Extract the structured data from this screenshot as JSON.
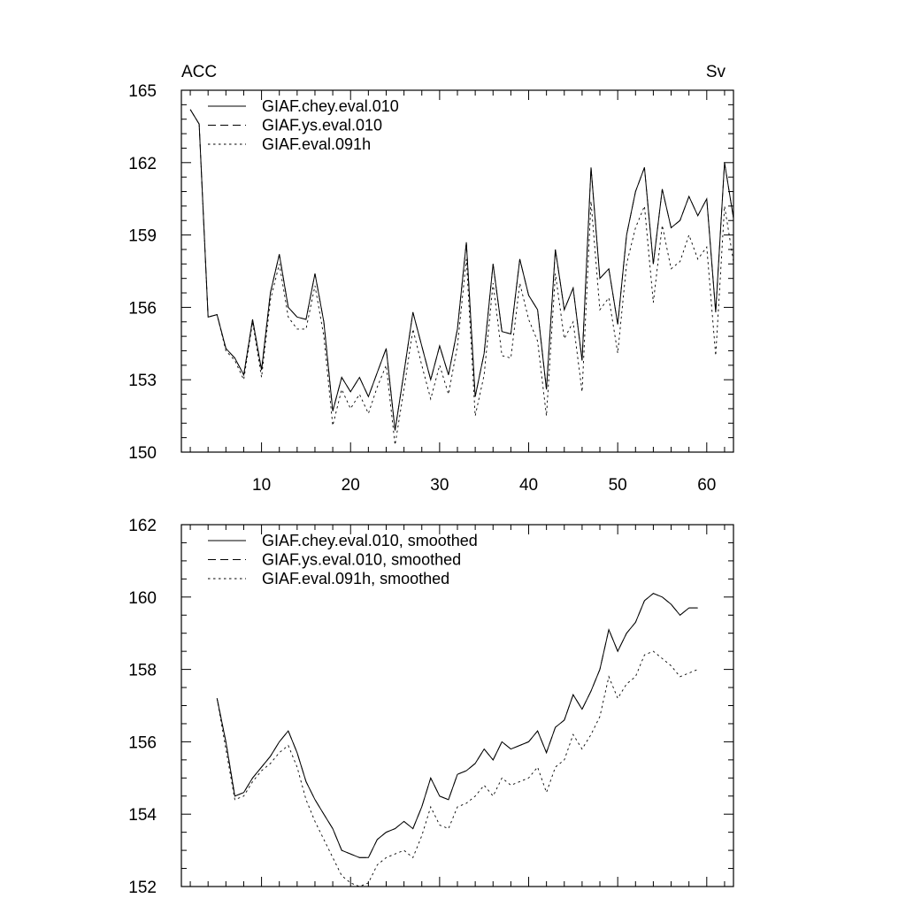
{
  "chart_data": [
    {
      "type": "line",
      "left_label": "ACC",
      "right_label": "Sv",
      "xlim": [
        1,
        63
      ],
      "ylim": [
        150,
        165
      ],
      "xticks": [
        10,
        20,
        30,
        40,
        50,
        60
      ],
      "yticks": [
        150,
        153,
        156,
        159,
        162,
        165
      ],
      "legend_position": "top-left",
      "series": [
        {
          "name": "GIAF.chey.eval.010",
          "style": "solid",
          "x": [
            2,
            3,
            4,
            5,
            6,
            7,
            8,
            9,
            10,
            11,
            12,
            13,
            14,
            15,
            16,
            17,
            18,
            19,
            20,
            21,
            22,
            23,
            24,
            25,
            26,
            27,
            28,
            29,
            30,
            31,
            32,
            33,
            34,
            35,
            36,
            37,
            38,
            39,
            40,
            41,
            42,
            43,
            44,
            45,
            46,
            47,
            48,
            49,
            50,
            51,
            52,
            53,
            54,
            55,
            56,
            57,
            58,
            59,
            60,
            61,
            62,
            63
          ],
          "values": [
            164.2,
            163.6,
            155.6,
            155.7,
            154.3,
            153.9,
            153.2,
            155.5,
            153.4,
            156.6,
            158.2,
            156.0,
            155.6,
            155.5,
            157.4,
            155.4,
            151.7,
            153.1,
            152.5,
            153.1,
            152.3,
            153.3,
            154.3,
            150.9,
            153.3,
            155.8,
            154.4,
            153.0,
            154.4,
            153.2,
            155.1,
            158.7,
            152.3,
            154.1,
            157.8,
            155.0,
            154.9,
            158.0,
            156.5,
            155.9,
            152.6,
            158.4,
            155.9,
            156.8,
            153.8,
            161.8,
            157.2,
            157.6,
            155.3,
            159.0,
            160.8,
            161.8,
            157.8,
            160.9,
            159.3,
            159.6,
            160.6,
            159.8,
            160.5,
            155.8,
            162.0,
            159.7
          ]
        },
        {
          "name": "GIAF.ys.eval.010",
          "style": "dashed",
          "x": [
            2,
            3,
            4,
            5,
            6,
            7,
            8,
            9,
            10,
            11,
            12,
            13,
            14,
            15,
            16,
            17,
            18,
            19,
            20,
            21,
            22,
            23,
            24,
            25,
            26,
            27,
            28,
            29,
            30,
            31,
            32,
            33,
            34,
            35,
            36,
            37,
            38,
            39,
            40,
            41,
            42,
            43,
            44,
            45,
            46,
            47,
            48,
            49,
            50,
            51,
            52,
            53,
            54,
            55,
            56,
            57,
            58,
            59,
            60,
            61,
            62,
            63
          ],
          "values": [
            164.2,
            163.6,
            155.6,
            155.7,
            154.3,
            153.9,
            153.2,
            155.5,
            153.4,
            156.6,
            158.2,
            156.0,
            155.6,
            155.5,
            157.4,
            155.4,
            151.7,
            153.1,
            152.5,
            153.1,
            152.3,
            153.3,
            154.3,
            150.9,
            153.3,
            155.8,
            154.4,
            153.0,
            154.4,
            153.2,
            155.1,
            158.7,
            152.3,
            154.1,
            157.8,
            155.0,
            154.9,
            158.0,
            156.5,
            155.9,
            152.6,
            158.4,
            155.9,
            156.8,
            153.8,
            161.8,
            157.2,
            157.6,
            155.3,
            159.0,
            160.8,
            161.8,
            157.8,
            160.9,
            159.3,
            159.6,
            160.6,
            159.8,
            160.5,
            155.8,
            162.0,
            159.7
          ]
        },
        {
          "name": "GIAF.eval.091h",
          "style": "dotted",
          "x": [
            2,
            3,
            4,
            5,
            6,
            7,
            8,
            9,
            10,
            11,
            12,
            13,
            14,
            15,
            16,
            17,
            18,
            19,
            20,
            21,
            22,
            23,
            24,
            25,
            26,
            27,
            28,
            29,
            30,
            31,
            32,
            33,
            34,
            35,
            36,
            37,
            38,
            39,
            40,
            41,
            42,
            43,
            44,
            45,
            46,
            47,
            48,
            49,
            50,
            51,
            52,
            53,
            54,
            55,
            56,
            57,
            58,
            59,
            60,
            61,
            62,
            63
          ],
          "values": [
            164.2,
            163.6,
            155.6,
            155.7,
            154.2,
            153.8,
            153.0,
            155.4,
            153.1,
            156.3,
            157.8,
            155.6,
            155.1,
            155.1,
            156.9,
            154.8,
            151.1,
            152.6,
            151.8,
            152.4,
            151.6,
            152.7,
            153.6,
            150.3,
            152.6,
            155.1,
            153.6,
            152.2,
            153.6,
            152.4,
            154.4,
            158.0,
            151.5,
            153.2,
            157.0,
            154.0,
            153.9,
            157.0,
            155.5,
            154.6,
            151.5,
            157.4,
            154.7,
            155.4,
            152.5,
            160.4,
            155.9,
            156.4,
            154.1,
            157.8,
            159.3,
            160.2,
            156.2,
            159.4,
            157.6,
            157.9,
            159.0,
            158.0,
            158.5,
            154.0,
            160.2,
            157.9
          ]
        }
      ]
    },
    {
      "type": "line",
      "xlim": [
        1,
        63
      ],
      "ylim": [
        152,
        162
      ],
      "yticks": [
        152,
        154,
        156,
        158,
        160,
        162
      ],
      "legend_position": "top-left",
      "series": [
        {
          "name": "GIAF.chey.eval.010, smoothed",
          "style": "solid",
          "x": [
            5,
            6,
            7,
            8,
            9,
            10,
            11,
            12,
            13,
            14,
            15,
            16,
            17,
            18,
            19,
            20,
            21,
            22,
            23,
            24,
            25,
            26,
            27,
            28,
            29,
            30,
            31,
            32,
            33,
            34,
            35,
            36,
            37,
            38,
            39,
            40,
            41,
            42,
            43,
            44,
            45,
            46,
            47,
            48,
            49,
            50,
            51,
            52,
            53,
            54,
            55,
            56,
            57,
            58,
            59,
            60
          ],
          "values": [
            157.2,
            156.0,
            154.5,
            154.6,
            155.0,
            155.3,
            155.6,
            156.0,
            156.3,
            155.7,
            154.9,
            154.4,
            154.0,
            153.6,
            153.0,
            152.9,
            152.8,
            152.8,
            153.3,
            153.5,
            153.6,
            153.8,
            153.6,
            154.2,
            155.0,
            154.5,
            154.4,
            155.1,
            155.2,
            155.4,
            155.8,
            155.5,
            156.0,
            155.8,
            155.9,
            156.0,
            156.3,
            155.7,
            156.4,
            156.6,
            157.3,
            156.9,
            157.4,
            158.0,
            159.1,
            158.5,
            159.0,
            159.3,
            159.9,
            160.1,
            160.0,
            159.8,
            159.5,
            159.7,
            159.7,
            null
          ]
        },
        {
          "name": "GIAF.ys.eval.010, smoothed",
          "style": "dashed",
          "x": [
            5,
            6,
            7,
            8,
            9,
            10,
            11,
            12,
            13,
            14,
            15,
            16,
            17,
            18,
            19,
            20,
            21,
            22,
            23,
            24,
            25,
            26,
            27,
            28,
            29,
            30,
            31,
            32,
            33,
            34,
            35,
            36,
            37,
            38,
            39,
            40,
            41,
            42,
            43,
            44,
            45,
            46,
            47,
            48,
            49,
            50,
            51,
            52,
            53,
            54,
            55,
            56,
            57,
            58,
            59,
            60
          ],
          "values": [
            157.2,
            156.0,
            154.5,
            154.6,
            155.0,
            155.3,
            155.6,
            156.0,
            156.3,
            155.7,
            154.9,
            154.4,
            154.0,
            153.6,
            153.0,
            152.9,
            152.8,
            152.8,
            153.3,
            153.5,
            153.6,
            153.8,
            153.6,
            154.2,
            155.0,
            154.5,
            154.4,
            155.1,
            155.2,
            155.4,
            155.8,
            155.5,
            156.0,
            155.8,
            155.9,
            156.0,
            156.3,
            155.7,
            156.4,
            156.6,
            157.3,
            156.9,
            157.4,
            158.0,
            159.1,
            158.5,
            159.0,
            159.3,
            159.9,
            160.1,
            160.0,
            159.8,
            159.5,
            159.7,
            159.7,
            null
          ]
        },
        {
          "name": "GIAF.eval.091h, smoothed",
          "style": "dotted",
          "x": [
            5,
            6,
            7,
            8,
            9,
            10,
            11,
            12,
            13,
            14,
            15,
            16,
            17,
            18,
            19,
            20,
            21,
            22,
            23,
            24,
            25,
            26,
            27,
            28,
            29,
            30,
            31,
            32,
            33,
            34,
            35,
            36,
            37,
            38,
            39,
            40,
            41,
            42,
            43,
            44,
            45,
            46,
            47,
            48,
            49,
            50,
            51,
            52,
            53,
            54,
            55,
            56,
            57,
            58,
            59,
            60
          ],
          "values": [
            157.2,
            155.8,
            154.4,
            154.5,
            154.9,
            155.2,
            155.4,
            155.7,
            155.9,
            155.3,
            154.4,
            153.8,
            153.3,
            152.8,
            152.3,
            152.1,
            152.0,
            152.1,
            152.6,
            152.8,
            152.9,
            153.0,
            152.8,
            153.4,
            154.2,
            153.7,
            153.6,
            154.2,
            154.3,
            154.5,
            154.8,
            154.5,
            155.0,
            154.8,
            154.9,
            155.0,
            155.3,
            154.6,
            155.3,
            155.5,
            156.2,
            155.8,
            156.2,
            156.7,
            157.8,
            157.2,
            157.6,
            157.8,
            158.4,
            158.5,
            158.3,
            158.1,
            157.8,
            157.9,
            158.0,
            null
          ]
        }
      ]
    }
  ]
}
